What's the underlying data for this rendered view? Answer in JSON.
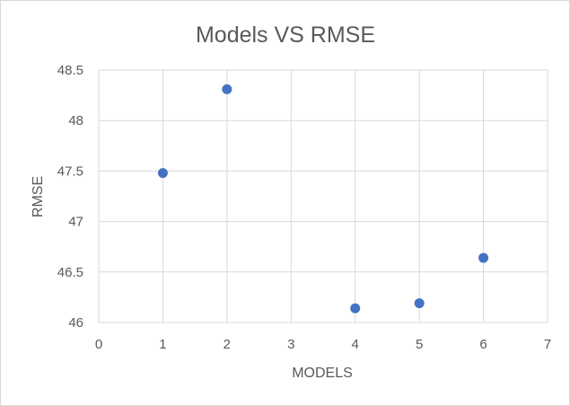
{
  "chart_data": {
    "type": "scatter",
    "title": "Models VS RMSE",
    "xlabel": "MODELS",
    "ylabel": "RMSE",
    "xlim": [
      0,
      7
    ],
    "ylim": [
      46,
      48.5
    ],
    "x_ticks": [
      "0",
      "1",
      "2",
      "3",
      "4",
      "5",
      "6",
      "7"
    ],
    "y_ticks": [
      "46",
      "46.5",
      "47",
      "47.5",
      "48",
      "48.5"
    ],
    "grid": true,
    "legend": "none",
    "marker_color": "#4472c4",
    "series": [
      {
        "points": [
          {
            "x": 1,
            "y": 47.48
          },
          {
            "x": 2,
            "y": 48.31
          },
          {
            "x": 4,
            "y": 46.14
          },
          {
            "x": 5,
            "y": 46.19
          },
          {
            "x": 6,
            "y": 46.64
          }
        ]
      }
    ]
  }
}
